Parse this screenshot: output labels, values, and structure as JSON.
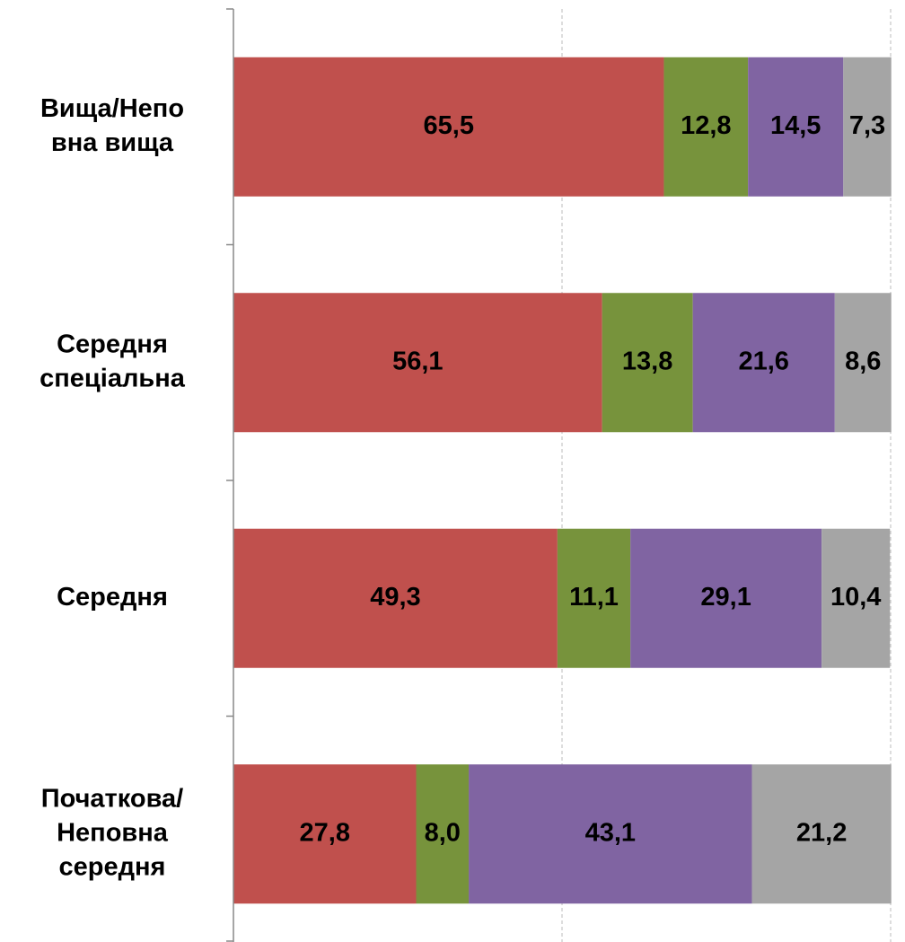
{
  "chart_data": {
    "type": "stacked_bar_horizontal",
    "categories": [
      [
        "Вища/Непо",
        "вна вища"
      ],
      [
        "Середня",
        "спеціальна"
      ],
      [
        "Середня"
      ],
      [
        "Початкова/",
        "Неповна",
        "середня"
      ]
    ],
    "series": [
      {
        "color": "#c0504d",
        "values": [
          65.5,
          56.1,
          49.3,
          27.8
        ],
        "value_labels": [
          "65,5",
          "56,1",
          "49,3",
          "27,8"
        ]
      },
      {
        "color": "#77933c",
        "values": [
          12.8,
          13.8,
          11.1,
          8.0
        ],
        "value_labels": [
          "12,8",
          "13,8",
          "11,1",
          "8,0"
        ]
      },
      {
        "color": "#8064a2",
        "values": [
          14.5,
          21.6,
          29.1,
          43.1
        ],
        "value_labels": [
          "14,5",
          "21,6",
          "29,1",
          "43,1"
        ]
      },
      {
        "color": "#a5a5a5",
        "values": [
          7.3,
          8.6,
          10.4,
          21.2
        ],
        "value_labels": [
          "7,3",
          "8,6",
          "10,4",
          "21,2"
        ]
      }
    ],
    "xlim": [
      0,
      100
    ],
    "xticks": [
      0,
      50,
      100
    ],
    "grid": true
  }
}
